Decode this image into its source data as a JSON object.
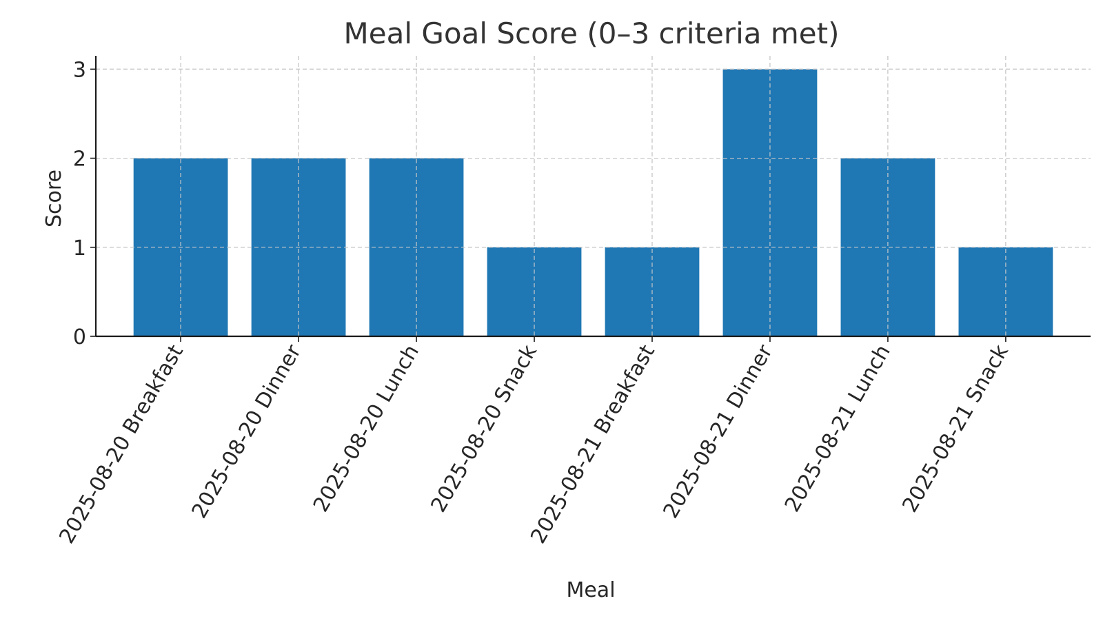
{
  "chart_data": {
    "type": "bar",
    "title": "Meal Goal Score (0–3 criteria met)",
    "xlabel": "Meal",
    "ylabel": "Score",
    "categories": [
      "2025-08-20 Breakfast",
      "2025-08-20 Dinner",
      "2025-08-20 Lunch",
      "2025-08-20 Snack",
      "2025-08-21 Breakfast",
      "2025-08-21 Dinner",
      "2025-08-21 Lunch",
      "2025-08-21 Snack"
    ],
    "values": [
      2,
      2,
      2,
      1,
      1,
      3,
      2,
      1
    ],
    "ylim": [
      0,
      3.15
    ],
    "yticks": [
      "0",
      "1",
      "2",
      "3"
    ],
    "grid": true,
    "bar_color": "#1f77b4"
  }
}
